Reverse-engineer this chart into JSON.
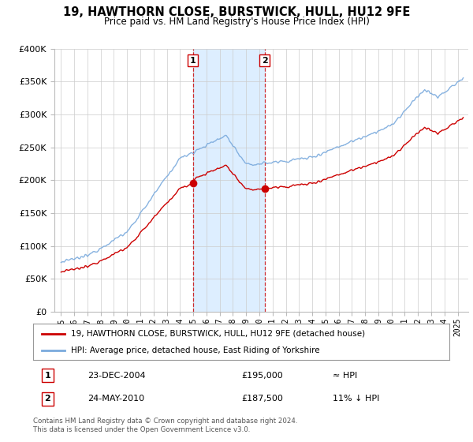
{
  "title": "19, HAWTHORN CLOSE, BURSTWICK, HULL, HU12 9FE",
  "subtitle": "Price paid vs. HM Land Registry's House Price Index (HPI)",
  "legend_line1": "19, HAWTHORN CLOSE, BURSTWICK, HULL, HU12 9FE (detached house)",
  "legend_line2": "HPI: Average price, detached house, East Riding of Yorkshire",
  "footer": "Contains HM Land Registry data © Crown copyright and database right 2024.\nThis data is licensed under the Open Government Licence v3.0.",
  "sale1_label": "1",
  "sale1_date": "23-DEC-2004",
  "sale1_price": "£195,000",
  "sale1_hpi": "≈ HPI",
  "sale2_label": "2",
  "sale2_date": "24-MAY-2010",
  "sale2_price": "£187,500",
  "sale2_hpi": "11% ↓ HPI",
  "price_color": "#cc0000",
  "hpi_color": "#7aaadd",
  "shade_color": "#ddeeff",
  "sale1_x": 2004.97,
  "sale1_y": 195000,
  "sale2_x": 2010.39,
  "sale2_y": 187500,
  "ylim": [
    0,
    400000
  ],
  "yticks": [
    0,
    50000,
    100000,
    150000,
    200000,
    250000,
    300000,
    350000,
    400000
  ],
  "xlim": [
    1994.5,
    2025.8
  ],
  "background_color": "#ffffff"
}
